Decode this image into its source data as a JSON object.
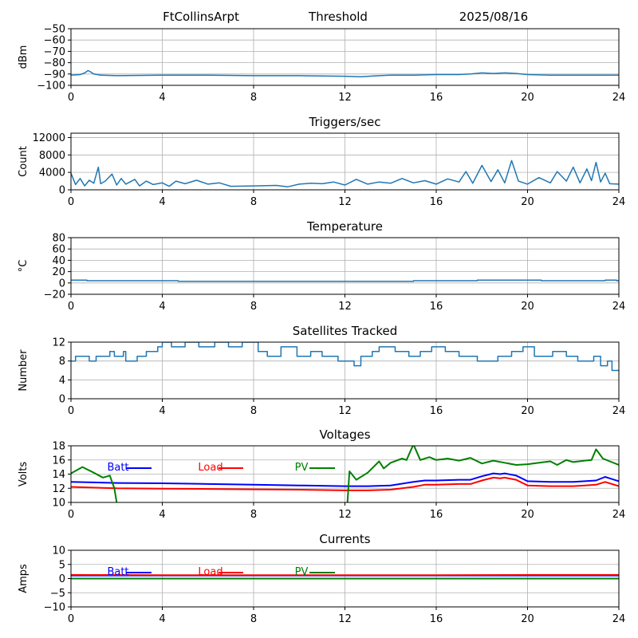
{
  "header": {
    "site": "FtCollinsArpt",
    "mode": "Threshold",
    "date": "2025/08/16"
  },
  "chart_data": [
    {
      "type": "line",
      "title": "",
      "ylabel": "dBm",
      "xlim": [
        0,
        24
      ],
      "ylim": [
        -100,
        -50
      ],
      "xticks": [
        0,
        4,
        8,
        12,
        16,
        20,
        24
      ],
      "yticks": [
        -100,
        -90,
        -80,
        -70,
        -60,
        -50
      ],
      "ytick_labels": [
        "−100",
        "−90",
        "−80",
        "−70",
        "−60",
        "−50"
      ],
      "grid": true,
      "series": [
        {
          "color": "#1f77b4",
          "x": [
            0,
            0.4,
            0.6,
            0.75,
            0.85,
            1.0,
            1.3,
            2,
            4,
            6,
            8,
            10,
            12,
            12.7,
            13.5,
            14,
            15,
            16,
            17,
            17.5,
            18,
            18.5,
            19,
            19.5,
            20,
            21,
            22,
            23,
            24
          ],
          "y": [
            -91,
            -90.5,
            -89,
            -87,
            -88,
            -90,
            -91,
            -91.5,
            -91,
            -91,
            -91.5,
            -91.5,
            -92,
            -92.5,
            -91.5,
            -91,
            -91,
            -90.5,
            -90.5,
            -90,
            -89,
            -89.5,
            -89,
            -89.5,
            -90.5,
            -91,
            -91,
            -91,
            -91
          ]
        }
      ]
    },
    {
      "type": "line",
      "title": "Triggers/sec",
      "ylabel": "Count",
      "xlim": [
        0,
        24
      ],
      "ylim": [
        0,
        13000
      ],
      "xticks": [
        0,
        4,
        8,
        12,
        16,
        20,
        24
      ],
      "yticks": [
        0,
        4000,
        8000,
        12000
      ],
      "ytick_labels": [
        "0",
        "4000",
        "8000",
        "12000"
      ],
      "grid": true,
      "series": [
        {
          "color": "#1f77b4",
          "x": [
            0,
            0.2,
            0.4,
            0.6,
            0.8,
            1.0,
            1.2,
            1.3,
            1.5,
            1.8,
            2.0,
            2.2,
            2.4,
            2.8,
            3.0,
            3.3,
            3.6,
            4.0,
            4.3,
            4.6,
            5.0,
            5.5,
            6.0,
            6.5,
            7.0,
            8.0,
            9.0,
            9.5,
            10.0,
            10.5,
            11.0,
            11.5,
            12.0,
            12.5,
            13.0,
            13.5,
            14.0,
            14.5,
            15.0,
            15.5,
            16.0,
            16.5,
            17.0,
            17.3,
            17.6,
            18.0,
            18.4,
            18.7,
            19.0,
            19.3,
            19.6,
            20.0,
            20.5,
            21.0,
            21.3,
            21.7,
            22.0,
            22.3,
            22.6,
            22.8,
            23.0,
            23.2,
            23.4,
            23.6,
            24.0
          ],
          "y": [
            3800,
            1200,
            2600,
            900,
            2200,
            1500,
            5200,
            1400,
            2000,
            3600,
            1100,
            2600,
            1300,
            2400,
            900,
            2000,
            1200,
            1600,
            800,
            2000,
            1400,
            2200,
            1300,
            1600,
            800,
            900,
            1000,
            700,
            1300,
            1500,
            1400,
            1800,
            1100,
            2400,
            1300,
            1800,
            1500,
            2600,
            1600,
            2100,
            1300,
            2500,
            1800,
            4200,
            1500,
            5600,
            1900,
            4600,
            1600,
            6700,
            2000,
            1300,
            2800,
            1600,
            4200,
            2000,
            5200,
            1600,
            4800,
            2100,
            6300,
            1800,
            3800,
            1400,
            1300
          ]
        }
      ]
    },
    {
      "type": "line",
      "title": "Temperature",
      "ylabel": "°C",
      "xlim": [
        0,
        24
      ],
      "ylim": [
        -20,
        80
      ],
      "xticks": [
        0,
        4,
        8,
        12,
        16,
        20,
        24
      ],
      "yticks": [
        -20,
        0,
        20,
        40,
        60,
        80
      ],
      "ytick_labels": [
        "−20",
        "0",
        "20",
        "40",
        "60",
        "80"
      ],
      "grid": true,
      "series": [
        {
          "color": "#1f77b4",
          "x": [
            0,
            0.7,
            0.7,
            4.7,
            4.7,
            15.0,
            15.0,
            17.8,
            17.8,
            20.6,
            20.6,
            23.4,
            23.4,
            23.9,
            23.9,
            24
          ],
          "y": [
            5,
            5,
            4,
            4,
            3,
            3,
            4,
            4,
            5,
            5,
            4,
            4,
            5,
            5,
            4,
            4
          ]
        }
      ]
    },
    {
      "type": "line",
      "title": "Satellites Tracked",
      "ylabel": "Number",
      "xlim": [
        0,
        24
      ],
      "ylim": [
        0,
        12
      ],
      "xticks": [
        0,
        4,
        8,
        12,
        16,
        20,
        24
      ],
      "yticks": [
        0,
        4,
        8,
        12
      ],
      "ytick_labels": [
        "0",
        "4",
        "8",
        "12"
      ],
      "grid": true,
      "series": [
        {
          "color": "#1f77b4",
          "x": [
            0,
            0.2,
            0.2,
            0.8,
            0.8,
            1.1,
            1.1,
            1.7,
            1.7,
            1.9,
            1.9,
            2.3,
            2.3,
            2.4,
            2.4,
            2.9,
            2.9,
            3.3,
            3.3,
            3.8,
            3.8,
            4.0,
            4.0,
            4.4,
            4.4,
            5.0,
            5.0,
            5.6,
            5.6,
            6.3,
            6.3,
            6.9,
            6.9,
            7.5,
            7.5,
            8.2,
            8.2,
            8.6,
            8.6,
            9.2,
            9.2,
            9.9,
            9.9,
            10.5,
            10.5,
            11.0,
            11.0,
            11.7,
            11.7,
            12.4,
            12.4,
            12.7,
            12.7,
            13.2,
            13.2,
            13.5,
            13.5,
            14.2,
            14.2,
            14.8,
            14.8,
            15.3,
            15.3,
            15.8,
            15.8,
            16.4,
            16.4,
            17.0,
            17.0,
            17.8,
            17.8,
            18.7,
            18.7,
            19.3,
            19.3,
            19.8,
            19.8,
            20.3,
            20.3,
            21.1,
            21.1,
            21.7,
            21.7,
            22.2,
            22.2,
            22.9,
            22.9,
            23.2,
            23.2,
            23.5,
            23.5,
            23.7,
            23.7,
            24
          ],
          "y": [
            8,
            8,
            9,
            9,
            8,
            8,
            9,
            9,
            10,
            10,
            9,
            9,
            10,
            10,
            8,
            8,
            9,
            9,
            10,
            10,
            11,
            11,
            12,
            12,
            11,
            11,
            12,
            12,
            11,
            11,
            12,
            12,
            11,
            11,
            12,
            12,
            10,
            10,
            9,
            9,
            11,
            11,
            9,
            9,
            10,
            10,
            9,
            9,
            8,
            8,
            7,
            7,
            9,
            9,
            10,
            10,
            11,
            11,
            10,
            10,
            9,
            9,
            10,
            10,
            11,
            11,
            10,
            10,
            9,
            9,
            8,
            8,
            9,
            9,
            10,
            10,
            11,
            11,
            9,
            9,
            10,
            10,
            9,
            9,
            8,
            8,
            9,
            9,
            7,
            7,
            8,
            8,
            6,
            6
          ]
        }
      ]
    },
    {
      "type": "line",
      "title": "Voltages",
      "ylabel": "Volts",
      "xlim": [
        0,
        24
      ],
      "ylim": [
        10,
        18
      ],
      "xticks": [
        0,
        4,
        8,
        12,
        16,
        20,
        24
      ],
      "yticks": [
        10,
        12,
        14,
        16,
        18
      ],
      "ytick_labels": [
        "10",
        "12",
        "14",
        "16",
        "18"
      ],
      "grid": true,
      "legend": "top-left, horizontal",
      "series": [
        {
          "name": "Batt",
          "color": "#0000ff",
          "x": [
            0,
            2,
            4,
            6,
            8,
            10,
            12,
            13,
            14,
            15,
            15.5,
            16,
            17,
            17.5,
            18,
            18.5,
            18.8,
            19,
            19.5,
            20,
            21,
            22,
            22.5,
            23,
            23.4,
            24
          ],
          "y": [
            12.9,
            12.75,
            12.7,
            12.6,
            12.5,
            12.4,
            12.3,
            12.3,
            12.4,
            12.9,
            13.1,
            13.1,
            13.2,
            13.2,
            13.7,
            14.1,
            14.0,
            14.1,
            13.8,
            13.0,
            12.9,
            12.9,
            13.0,
            13.1,
            13.6,
            13.0
          ]
        },
        {
          "name": "Load",
          "color": "#ff0000",
          "x": [
            0,
            2,
            4,
            6,
            8,
            10,
            12,
            13,
            14,
            15,
            15.5,
            16,
            17,
            17.5,
            18,
            18.5,
            18.8,
            19,
            19.5,
            20,
            21,
            22,
            22.5,
            23,
            23.4,
            24
          ],
          "y": [
            12.2,
            12.0,
            11.95,
            11.9,
            11.85,
            11.8,
            11.7,
            11.7,
            11.8,
            12.2,
            12.5,
            12.5,
            12.6,
            12.6,
            13.1,
            13.5,
            13.4,
            13.5,
            13.2,
            12.4,
            12.3,
            12.3,
            12.4,
            12.5,
            12.9,
            12.3
          ]
        },
        {
          "name": "PV",
          "color": "#008000",
          "x": [
            0,
            0.5,
            1.0,
            1.4,
            1.7,
            1.9,
            2.0,
            2.1,
            12.1,
            12.2,
            12.5,
            13.0,
            13.5,
            13.7,
            14.0,
            14.5,
            14.7,
            15.0,
            15.3,
            15.7,
            16.0,
            16.5,
            17.0,
            17.5,
            18.0,
            18.5,
            19.0,
            19.5,
            20.0,
            20.5,
            21.0,
            21.3,
            21.7,
            22.0,
            22.5,
            22.8,
            23.0,
            23.3,
            23.6,
            24
          ],
          "y": [
            14.1,
            15.0,
            14.2,
            13.5,
            13.8,
            12.0,
            10.0,
            9.5,
            9.5,
            14.4,
            13.2,
            14.2,
            15.8,
            14.8,
            15.6,
            16.2,
            16.0,
            18.2,
            16.0,
            16.4,
            16.0,
            16.2,
            15.9,
            16.3,
            15.5,
            15.9,
            15.6,
            15.3,
            15.4,
            15.6,
            15.8,
            15.3,
            16.0,
            15.7,
            15.9,
            16.0,
            17.5,
            16.2,
            15.8,
            15.3
          ]
        }
      ]
    },
    {
      "type": "line",
      "title": "Currents",
      "ylabel": "Amps",
      "xlim": [
        0,
        24
      ],
      "ylim": [
        -10,
        10
      ],
      "xticks": [
        0,
        4,
        8,
        12,
        16,
        20,
        24
      ],
      "yticks": [
        -10,
        -5,
        0,
        5,
        10
      ],
      "ytick_labels": [
        "−10",
        "−5",
        "0",
        "5",
        "10"
      ],
      "grid": true,
      "legend": "top-left, horizontal",
      "series": [
        {
          "name": "Batt",
          "color": "#0000ff",
          "x": [
            0,
            24
          ],
          "y": [
            1.1,
            1.1
          ]
        },
        {
          "name": "Load",
          "color": "#ff0000",
          "x": [
            0,
            4,
            8,
            12,
            16,
            20,
            24
          ],
          "y": [
            1.3,
            1.2,
            1.2,
            1.2,
            1.2,
            1.3,
            1.3
          ]
        },
        {
          "name": "PV",
          "color": "#008000",
          "x": [
            0,
            24
          ],
          "y": [
            0,
            0
          ]
        }
      ]
    }
  ]
}
